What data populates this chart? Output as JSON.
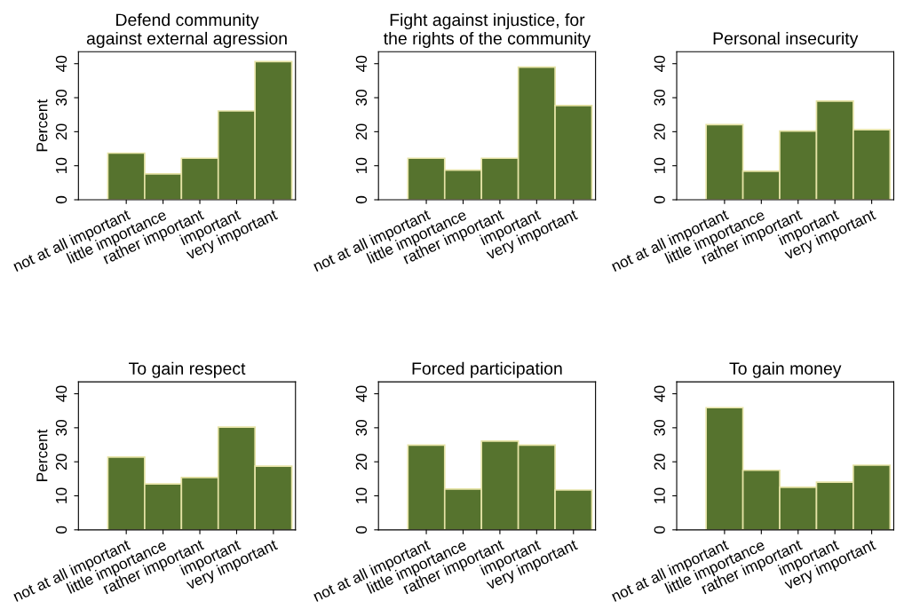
{
  "chart_data": [
    {
      "type": "bar",
      "title": "Defend community\nagainst external agression",
      "ylabel": "Percent",
      "categories": [
        "not at all important",
        "little importance",
        "rather important",
        "important",
        "very important"
      ],
      "values": [
        13.7,
        7.6,
        12.2,
        26.1,
        40.6
      ],
      "color": "#56732e",
      "ylim": [
        0,
        43.5
      ],
      "yticks": [
        0,
        10,
        20,
        30,
        40
      ]
    },
    {
      "type": "bar",
      "title": "Fight against injustice, for\nthe rights of the community",
      "categories": [
        "not at all important",
        "little importance",
        "rather important",
        "important",
        "very important"
      ],
      "values": [
        12.2,
        8.7,
        12.2,
        39.0,
        27.7
      ],
      "color": "#56732e",
      "ylim": [
        0,
        43.5
      ],
      "yticks": [
        0,
        10,
        20,
        30,
        40
      ]
    },
    {
      "type": "bar",
      "title": "Personal insecurity",
      "categories": [
        "not at all important",
        "little importance",
        "rather important",
        "important",
        "very important"
      ],
      "values": [
        22.1,
        8.4,
        20.2,
        29.0,
        20.6
      ],
      "color": "#56732e",
      "ylim": [
        0,
        43.5
      ],
      "yticks": [
        0,
        10,
        20,
        30,
        40
      ]
    },
    {
      "type": "bar",
      "title": "To gain respect",
      "ylabel": "Percent",
      "categories": [
        "not at all important",
        "little importance",
        "rather important",
        "important",
        "very important"
      ],
      "values": [
        21.4,
        13.5,
        15.4,
        30.2,
        18.7
      ],
      "color": "#56732e",
      "ylim": [
        0,
        43.5
      ],
      "yticks": [
        0,
        10,
        20,
        30,
        40
      ]
    },
    {
      "type": "bar",
      "title": "Forced participation",
      "categories": [
        "not at all important",
        "little importance",
        "rather important",
        "important",
        "very important"
      ],
      "values": [
        24.9,
        12.0,
        26.1,
        24.9,
        11.7
      ],
      "color": "#56732e",
      "ylim": [
        0,
        43.5
      ],
      "yticks": [
        0,
        10,
        20,
        30,
        40
      ]
    },
    {
      "type": "bar",
      "title": "To gain money",
      "categories": [
        "not at all important",
        "little importance",
        "rather important",
        "important",
        "very important"
      ],
      "values": [
        35.9,
        17.5,
        12.5,
        14.0,
        19.0
      ],
      "color": "#56732e",
      "ylim": [
        0,
        43.5
      ],
      "yticks": [
        0,
        10,
        20,
        30,
        40
      ]
    }
  ]
}
